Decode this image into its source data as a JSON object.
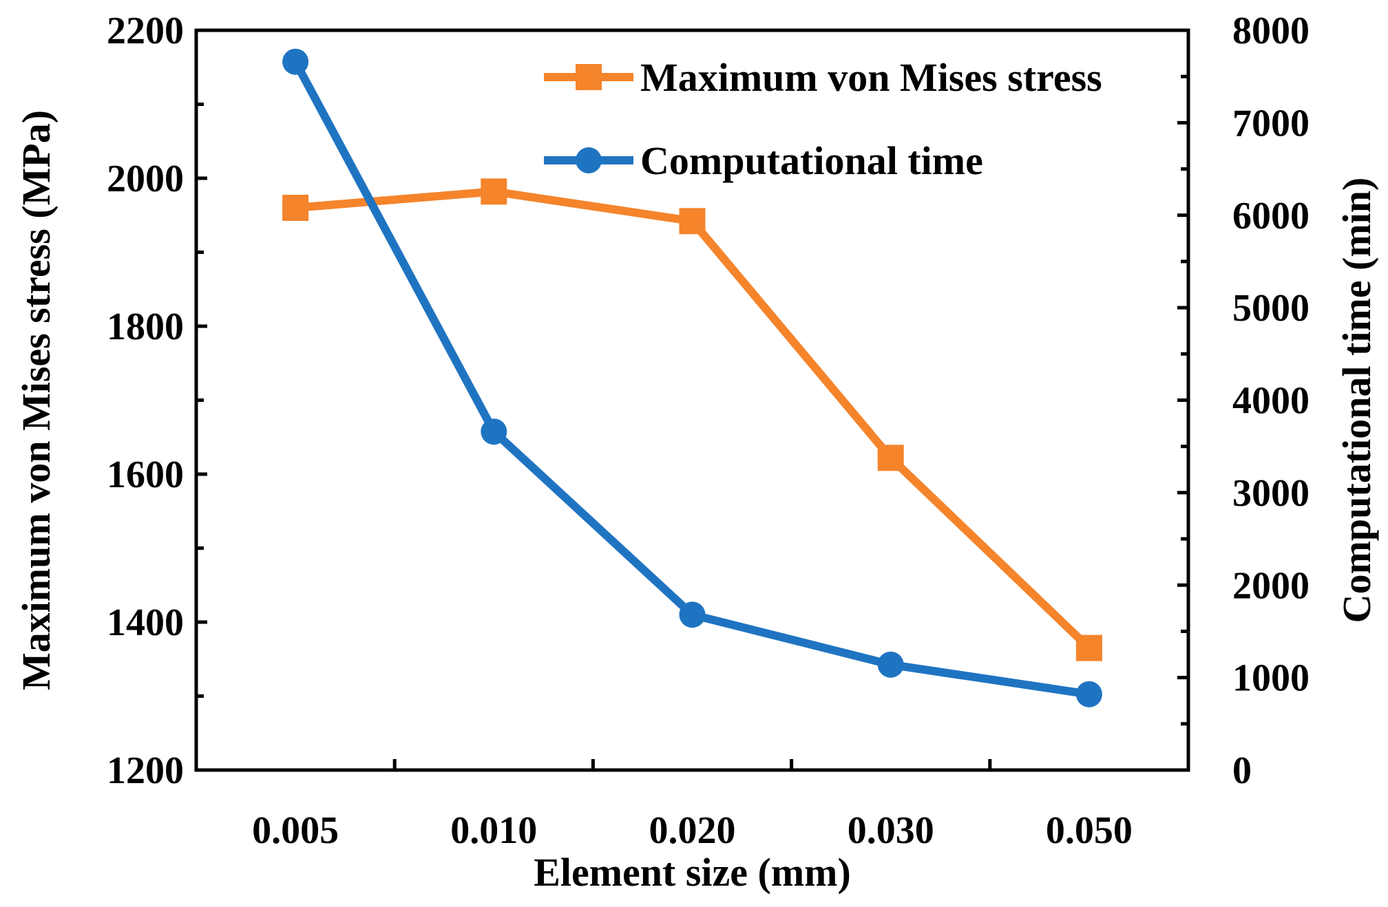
{
  "chart_data": {
    "type": "line",
    "title": "",
    "xlabel": "Element size (mm)",
    "ylabel_left": "Maximum von Mises stress (MPa)",
    "ylabel_right": "Computational time (min)",
    "categories": [
      "0.005",
      "0.010",
      "0.020",
      "0.030",
      "0.050"
    ],
    "y_left_lim": [
      1200,
      2200
    ],
    "y_left_ticks": [
      "1200",
      "1400",
      "1600",
      "1800",
      "2000",
      "2200"
    ],
    "y_right_lim": [
      0,
      8000
    ],
    "y_right_ticks": [
      "0",
      "1000",
      "2000",
      "3000",
      "4000",
      "5000",
      "6000",
      "7000",
      "8000"
    ],
    "grid": false,
    "legend_position": "top-right",
    "series": [
      {
        "name": "Maximum von Mises stress",
        "axis": "left",
        "marker": "square",
        "color": "#F5842B",
        "values": [
          1960,
          1982,
          1942,
          1622,
          1365
        ]
      },
      {
        "name": "Computational time",
        "axis": "right",
        "marker": "circle",
        "color": "#1F74C2",
        "values": [
          7660,
          3660,
          1680,
          1140,
          820
        ]
      }
    ]
  }
}
